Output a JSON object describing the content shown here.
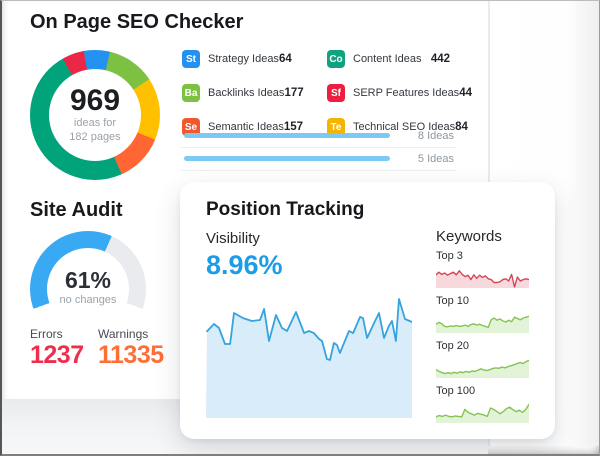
{
  "seo_checker": {
    "title": "On Page SEO Checker",
    "donut": {
      "total": "969",
      "subtitle_line1": "ideas for",
      "subtitle_line2": "182 pages"
    },
    "legend_columns": [
      [
        {
          "abbr": "St",
          "color": "#2291f0",
          "label": "Strategy Ideas",
          "count": "64"
        },
        {
          "abbr": "Ba",
          "color": "#7dc142",
          "label": "Backlinks Ideas",
          "count": "177"
        },
        {
          "abbr": "Se",
          "color": "#f0582f",
          "label": "Semantic Ideas",
          "count": "157"
        }
      ],
      [
        {
          "abbr": "Co",
          "color": "#10a37f",
          "label": "Content Ideas",
          "count": "442"
        },
        {
          "abbr": "Sf",
          "color": "#ed1e3f",
          "label": "SERP Features Ideas",
          "count": "44"
        },
        {
          "abbr": "Te",
          "color": "#f5b400",
          "label": "Technical SEO Ideas",
          "count": "84"
        }
      ]
    ],
    "idea_bars": [
      {
        "label": "8 Ideas",
        "bar_pct": 100
      },
      {
        "label": "5 Ideas",
        "bar_pct": 100
      }
    ],
    "bar_color": "#7cc9f3"
  },
  "site_audit": {
    "title": "Site Audit",
    "gauge": {
      "value": "61%",
      "percent": 61,
      "caption": "no changes",
      "color": "#3aa9f4",
      "track_color": "#e9ebee"
    },
    "stats": [
      {
        "label": "Errors",
        "value": "1237",
        "color": "#ed2e4f"
      },
      {
        "label": "Warnings",
        "value": "11335",
        "color": "#ff6e35"
      }
    ]
  },
  "position_tracking": {
    "title": "Position Tracking",
    "visibility_label": "Visibility",
    "visibility_value": "8.96%",
    "visibility_color": "#1e9de6",
    "keywords_label": "Keywords"
  },
  "chart_data": [
    {
      "id": "ideas-donut",
      "type": "pie",
      "title": "On Page SEO Checker ideas by type",
      "center_label": "969 ideas for 182 pages",
      "series": [
        {
          "name": "Strategy Ideas",
          "value": 64,
          "color": "#2291f0"
        },
        {
          "name": "Backlinks Ideas",
          "value": 177,
          "color": "#7dc142"
        },
        {
          "name": "Technical SEO Ideas",
          "value": 84,
          "color": "#ffc000"
        },
        {
          "name": "Semantic Ideas",
          "value": 157,
          "color": "#ff6633"
        },
        {
          "name": "Content Ideas",
          "value": 442,
          "color": "#00a37a"
        },
        {
          "name": "SERP Features Ideas",
          "value": 44,
          "color": "#ea2746"
        }
      ],
      "visual_percents": [
        6.5,
        12,
        15.5,
        12,
        48.5,
        5.5
      ],
      "start_angle_deg": 350
    },
    {
      "id": "site-health-gauge",
      "type": "gauge",
      "value_pct": 61,
      "label": "no changes",
      "arc_span_deg": 220,
      "start_angle_deg": 250,
      "color": "#3aa9f4",
      "track_color": "#e9ebee"
    },
    {
      "id": "visibility",
      "type": "area",
      "title": "Visibility",
      "current_value_pct": 8.96,
      "ylim": [
        0,
        100
      ],
      "grid": false,
      "line_color": "#35a3dd",
      "fill_color": "#d9ecfa",
      "points": [
        [
          0.5,
          70
        ],
        [
          3.9,
          75.8
        ],
        [
          6.3,
          72.6
        ],
        [
          9.2,
          59.7
        ],
        [
          11.7,
          59.7
        ],
        [
          13.6,
          84.7
        ],
        [
          18,
          80.6
        ],
        [
          22.3,
          78.2
        ],
        [
          26.2,
          79
        ],
        [
          28.2,
          87.9
        ],
        [
          30.6,
          62.1
        ],
        [
          34,
          83.1
        ],
        [
          36.9,
          72.6
        ],
        [
          39.3,
          70.2
        ],
        [
          43.7,
          85.5
        ],
        [
          47.6,
          68.5
        ],
        [
          50,
          70.2
        ],
        [
          52.4,
          68.5
        ],
        [
          54.9,
          63.7
        ],
        [
          56.3,
          62.1
        ],
        [
          58.7,
          47.6
        ],
        [
          60.2,
          46.8
        ],
        [
          62.1,
          60.5
        ],
        [
          63.6,
          58.9
        ],
        [
          65,
          52.4
        ],
        [
          69.4,
          70.2
        ],
        [
          71.4,
          68.5
        ],
        [
          74.8,
          81.5
        ],
        [
          76.2,
          80.6
        ],
        [
          78.2,
          64.5
        ],
        [
          81.6,
          76.6
        ],
        [
          84,
          84.7
        ],
        [
          86.4,
          64.5
        ],
        [
          88.8,
          74.2
        ],
        [
          90.3,
          78.2
        ],
        [
          92.2,
          62.1
        ],
        [
          93.7,
          96
        ],
        [
          96.6,
          79.8
        ],
        [
          100,
          77.4
        ]
      ]
    },
    {
      "id": "top3",
      "type": "area",
      "title": "Top 3",
      "line_color": "#d24758",
      "fill_color": "#f6d8dd",
      "values": [
        60,
        72,
        62,
        68,
        58,
        66,
        72,
        60,
        78,
        62,
        52,
        58,
        38,
        60,
        44,
        58,
        48,
        55,
        42,
        38,
        25,
        25,
        28,
        38,
        42,
        32,
        62,
        5,
        50,
        32,
        38,
        42,
        38
      ]
    },
    {
      "id": "top10",
      "type": "area",
      "title": "Top 10",
      "line_color": "#85c353",
      "fill_color": "#e2f3d7",
      "values": [
        40,
        48,
        42,
        30,
        28,
        32,
        30,
        34,
        30,
        32,
        36,
        30,
        38,
        42,
        36,
        40,
        34,
        30,
        26,
        60,
        68,
        58,
        64,
        55,
        50,
        58,
        52,
        72,
        66,
        60,
        68,
        72,
        76
      ]
    },
    {
      "id": "top20",
      "type": "area",
      "title": "Top 20",
      "line_color": "#85c353",
      "fill_color": "#e2f3d7",
      "values": [
        38,
        30,
        24,
        20,
        24,
        20,
        26,
        22,
        28,
        24,
        30,
        26,
        32,
        30,
        36,
        42,
        36,
        34,
        38,
        44,
        46,
        44,
        50,
        46,
        52,
        56,
        60,
        66,
        70,
        66,
        74,
        80
      ]
    },
    {
      "id": "top100",
      "type": "area",
      "title": "Top 100",
      "line_color": "#85c353",
      "fill_color": "#e2f3d7",
      "values": [
        28,
        34,
        30,
        36,
        30,
        28,
        32,
        30,
        28,
        62,
        48,
        42,
        36,
        44,
        40,
        36,
        30,
        68,
        62,
        52,
        42,
        52,
        66,
        72,
        60,
        52,
        58,
        48,
        62,
        85
      ]
    }
  ]
}
